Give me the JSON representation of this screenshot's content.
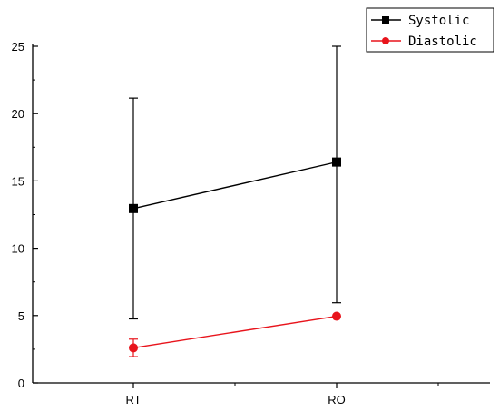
{
  "chart_data": {
    "type": "line",
    "categories": [
      "RT",
      "RO"
    ],
    "ylim": [
      0,
      25
    ],
    "yticks": [
      0,
      5,
      10,
      15,
      20,
      25
    ],
    "ytick_labels": [
      "0",
      "5",
      "10",
      "15",
      "20",
      "25"
    ],
    "title": "",
    "xlabel": "",
    "ylabel": "",
    "grid": false,
    "legend_position": "top-right",
    "series": [
      {
        "name": "Systolic",
        "color": "#000000",
        "marker": "square",
        "values": [
          12.95,
          16.4
        ],
        "error_low": [
          4.75,
          5.95
        ],
        "error_high": [
          21.15,
          25.0
        ]
      },
      {
        "name": "Diastolic",
        "color": "#e8141c",
        "marker": "circle",
        "values": [
          2.6,
          4.95
        ],
        "error_low": [
          1.95,
          4.95
        ],
        "error_high": [
          3.25,
          4.95
        ]
      }
    ]
  }
}
